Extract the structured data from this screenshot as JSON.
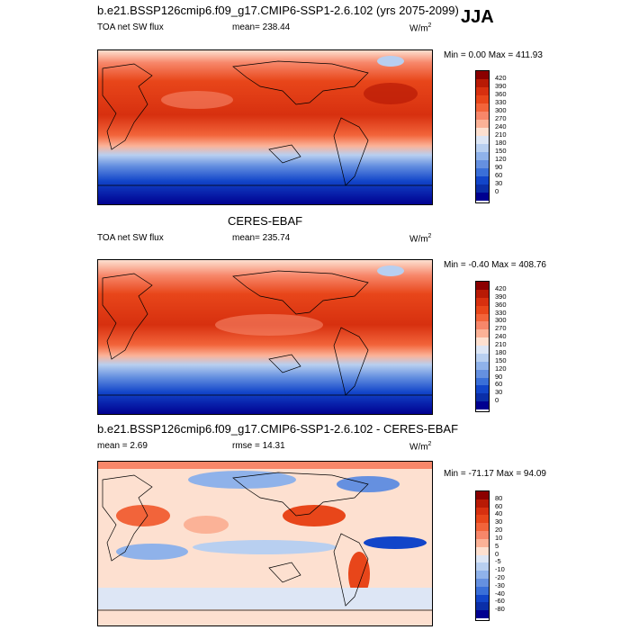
{
  "season": "JJA",
  "panels": [
    {
      "title": "b.e21.BSSP126cmip6.f09_g17.CMIP6-SSP1-2.6.102 (yrs 2075-2099)",
      "left_label": "TOA net SW flux",
      "mean_text": "mean= 238.44",
      "units_text": "W/m",
      "units_sup": "2",
      "minmax": "Min =   0.00 Max = 411.93",
      "colorbar": {
        "labels": [
          "420",
          "390",
          "360",
          "330",
          "300",
          "270",
          "240",
          "210",
          "180",
          "150",
          "120",
          "90",
          "60",
          "30",
          "0"
        ],
        "colors": [
          "#8b0000",
          "#b81a05",
          "#d7300f",
          "#e8461a",
          "#f2643a",
          "#f7876a",
          "#fbb297",
          "#fde0d0",
          "#dde6f5",
          "#b8cff0",
          "#8fb2ea",
          "#6590e0",
          "#3a6fd8",
          "#1245c9",
          "#0a2ea8",
          "#000090"
        ]
      }
    },
    {
      "title": "CERES-EBAF",
      "left_label": "TOA net SW flux",
      "mean_text": "mean= 235.74",
      "units_text": "W/m",
      "units_sup": "2",
      "minmax": "Min =  -0.40 Max = 408.76",
      "colorbar": {
        "labels": [
          "420",
          "390",
          "360",
          "330",
          "300",
          "270",
          "240",
          "210",
          "180",
          "150",
          "120",
          "90",
          "60",
          "30",
          "0"
        ],
        "colors": [
          "#8b0000",
          "#b81a05",
          "#d7300f",
          "#e8461a",
          "#f2643a",
          "#f7876a",
          "#fbb297",
          "#fde0d0",
          "#dde6f5",
          "#b8cff0",
          "#8fb2ea",
          "#6590e0",
          "#3a6fd8",
          "#1245c9",
          "#0a2ea8",
          "#000090"
        ]
      }
    },
    {
      "title": "b.e21.BSSP126cmip6.f09_g17.CMIP6-SSP1-2.6.102 - CERES-EBAF",
      "left_label": "mean =   2.69",
      "mean_text": "rmse =  14.31",
      "units_text": "W/m",
      "units_sup": "2",
      "minmax": "Min = -71.17 Max =  94.09",
      "colorbar": {
        "labels": [
          "80",
          "60",
          "40",
          "30",
          "20",
          "10",
          "5",
          "0",
          "-5",
          "-10",
          "-20",
          "-30",
          "-40",
          "-60",
          "-80"
        ],
        "colors": [
          "#8b0000",
          "#b81a05",
          "#d7300f",
          "#e8461a",
          "#f2643a",
          "#f7876a",
          "#fbb297",
          "#fde0d0",
          "#dde6f5",
          "#b8cff0",
          "#8fb2ea",
          "#6590e0",
          "#3a6fd8",
          "#1245c9",
          "#0a2ea8",
          "#000090"
        ]
      }
    }
  ],
  "chart_data": [
    {
      "type": "heatmap",
      "title": "b.e21.BSSP126cmip6.f09_g17.CMIP6-SSP1-2.6.102 (yrs 2075-2099)",
      "variable": "TOA net SW flux",
      "mean": 238.44,
      "min": 0.0,
      "max": 411.93,
      "colorbar_levels": [
        0,
        30,
        60,
        90,
        120,
        150,
        180,
        210,
        240,
        270,
        300,
        330,
        360,
        390,
        420
      ]
    },
    {
      "type": "heatmap",
      "title": "CERES-EBAF",
      "variable": "TOA net SW flux",
      "mean": 235.74,
      "min": -0.4,
      "max": 408.76,
      "colorbar_levels": [
        0,
        30,
        60,
        90,
        120,
        150,
        180,
        210,
        240,
        270,
        300,
        330,
        360,
        390,
        420
      ]
    },
    {
      "type": "heatmap",
      "title": "b.e21.BSSP126cmip6.f09_g17.CMIP6-SSP1-2.6.102 - CERES-EBAF",
      "mean": 2.69,
      "rmse": 14.31,
      "min": -71.17,
      "max": 94.09,
      "colorbar_levels": [
        -80,
        -60,
        -40,
        -30,
        -20,
        -10,
        -5,
        0,
        5,
        10,
        20,
        30,
        40,
        60,
        80
      ]
    }
  ]
}
